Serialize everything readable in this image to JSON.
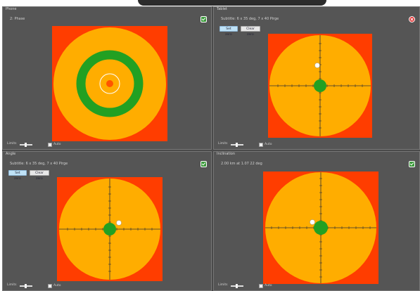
{
  "panels": {
    "p1": {
      "title": "Phone",
      "subtitle": "2: Phase",
      "status": "check-icon"
    },
    "p2": {
      "title": "Tablet",
      "subtitle": "Subtitle: 6 x 35 deg, 7 x 40 Pirge",
      "status": "error-icon",
      "set_zero": "Set zero",
      "clear_zero": "Clear zero"
    },
    "p3": {
      "title": "Angle",
      "subtitle": "Subtitle: 6 x 35 deg, 7 x 40 Pirge",
      "status": "check-icon",
      "set_zero": "Set zero",
      "clear_zero": "Clear zero"
    },
    "p4": {
      "title": "Inclination",
      "subtitle": "2.00 km at 1.07 22 deg",
      "status": "check-icon"
    }
  },
  "footer": {
    "label": "Limits",
    "check_label": "Auto"
  },
  "colors": {
    "background": "#ff3d00",
    "field": "#ffad00",
    "ring": "#22a022",
    "center": "#ff5500"
  }
}
